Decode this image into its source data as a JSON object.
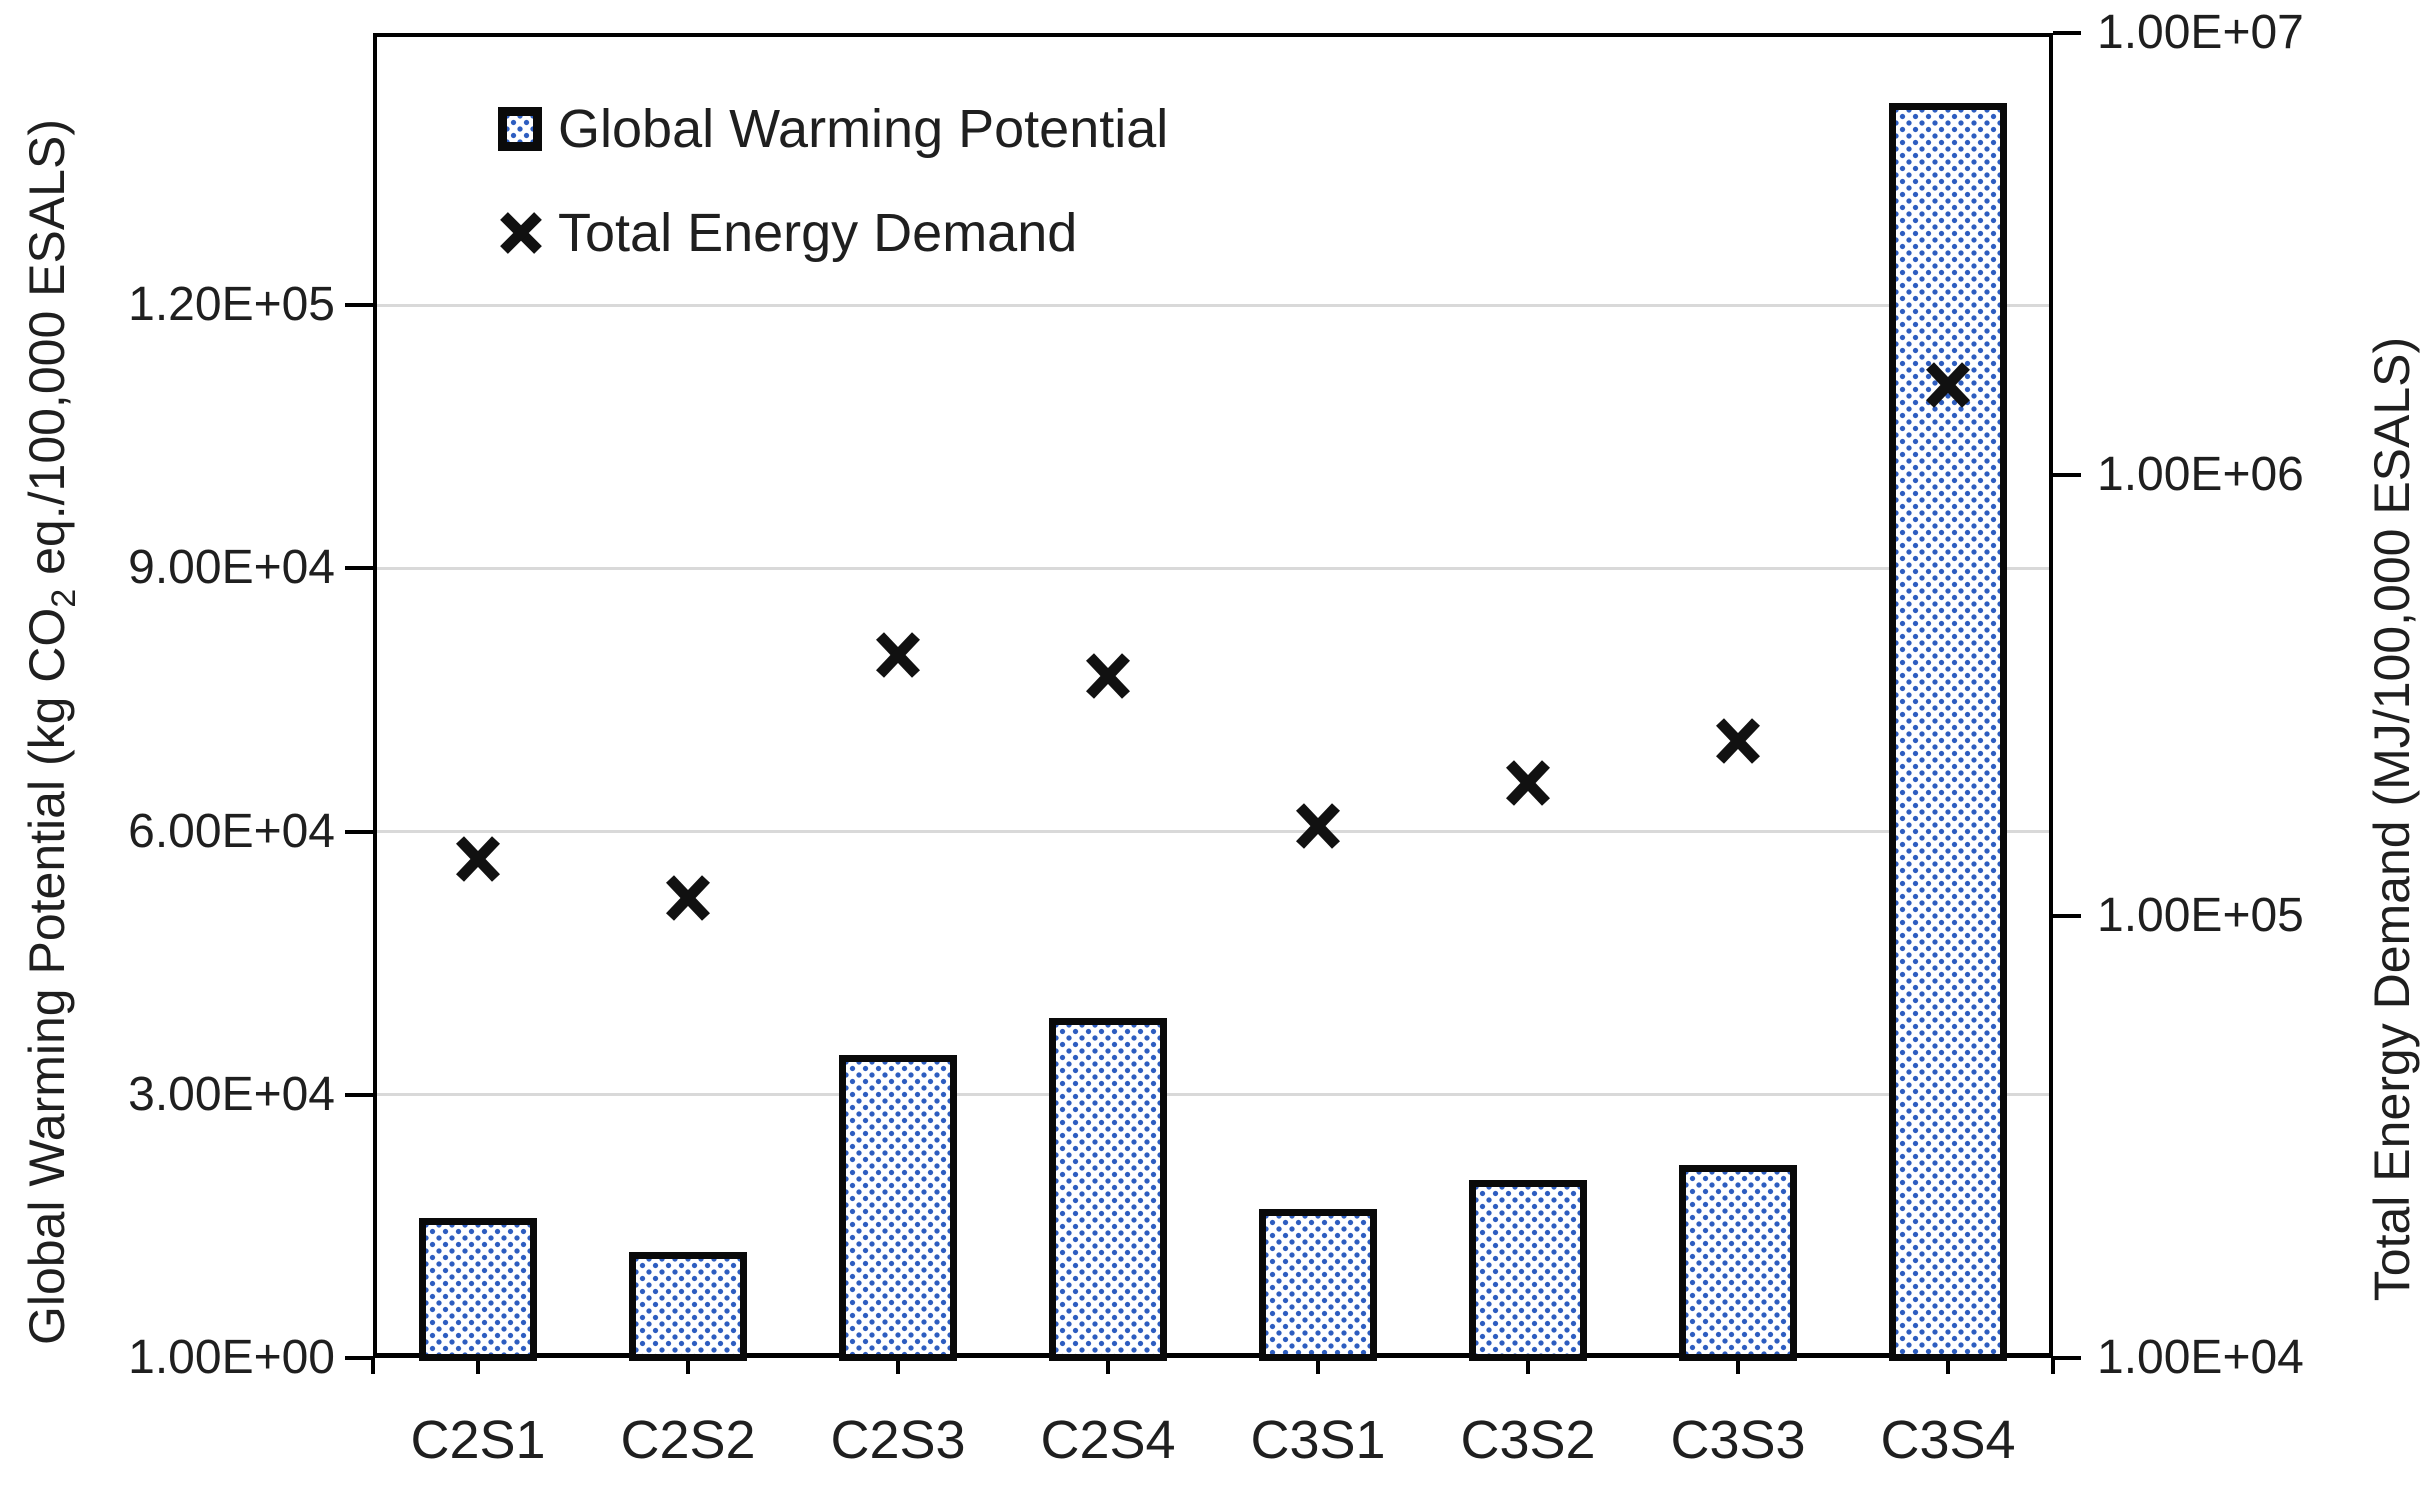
{
  "chart_data": {
    "type": "bar+scatter-combo",
    "categories": [
      "C2S1",
      "C2S2",
      "C2S3",
      "C2S4",
      "C3S1",
      "C3S2",
      "C3S3",
      "C3S4"
    ],
    "series": [
      {
        "name": "Global Warming Potential",
        "plot_type": "bar",
        "axis": "left",
        "marker": "dotted-square",
        "values": [
          16000,
          12100,
          34500,
          38800,
          17000,
          20300,
          22000,
          143000
        ]
      },
      {
        "name": "Total Energy Demand",
        "plot_type": "scatter",
        "axis": "right",
        "marker": "x",
        "values": [
          135000,
          110000,
          390000,
          350000,
          160000,
          200000,
          250000,
          1600000
        ]
      }
    ],
    "left_axis": {
      "title_prefix": "Global Warming Potential  (kg CO",
      "title_sub": "2",
      "title_suffix": " eq./100,000 ESALS)",
      "tick_labels": [
        "1.00E+00",
        "3.00E+04",
        "6.00E+04",
        "9.00E+04",
        "1.20E+05"
      ],
      "tick_values": [
        1,
        30000,
        60000,
        90000,
        120000
      ],
      "range": [
        0,
        151000
      ],
      "scale": "linear"
    },
    "right_axis": {
      "title": "Total Energy Demand (MJ/100,000 ESALS)",
      "tick_labels": [
        "1.00E+04",
        "1.00E+05",
        "1.00E+06",
        "1.00E+07"
      ],
      "tick_values": [
        10000,
        100000,
        1000000,
        10000000
      ],
      "range": [
        10000,
        10000000
      ],
      "scale": "log"
    },
    "legend_position": "top-left-inside",
    "grid": "horizontal-light",
    "colors": {
      "bar_dot": "#2d5dc0",
      "bar_border": "#0a0a0a",
      "axis_line": "#000000",
      "gridline": "#d9d9d9",
      "marker": "#111111",
      "text": "#1f1f1f",
      "background": "#ffffff"
    }
  }
}
